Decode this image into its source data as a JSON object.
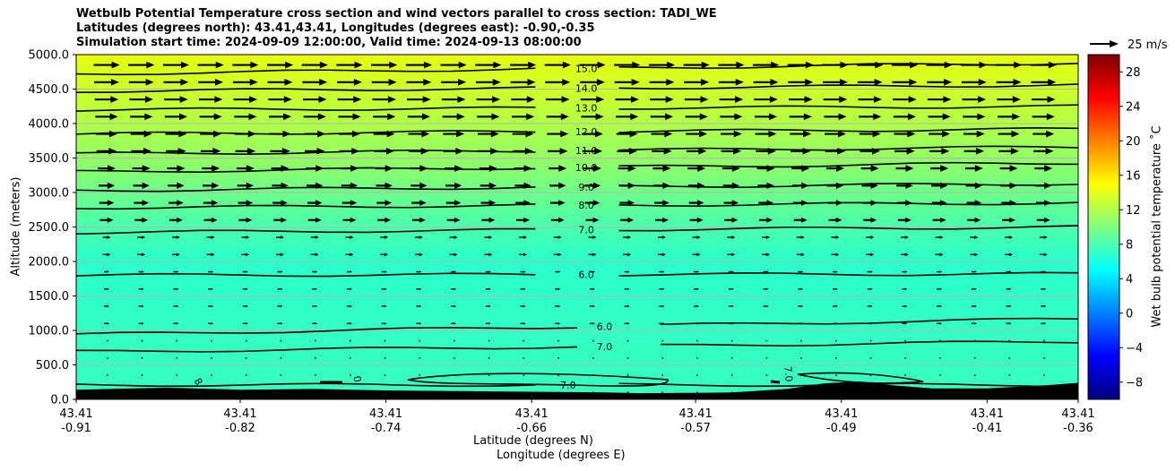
{
  "chart_data": {
    "type": "cross-section-contour",
    "title_lines": [
      "Wetbulb Potential Temperature cross section and wind vectors parallel to cross section: TADI_WE",
      "Latitudes (degrees north): 43.41,43.41, Longitudes (degrees east): -0.90,-0.35",
      "Simulation start time: 2024-09-09 12:00:00, Valid time: 2024-09-13 08:00:00"
    ],
    "ylabel": "Altitude (meters)",
    "xlabel_lat": "Latitude (degrees N)",
    "xlabel_lon": "Longitude (degrees E)",
    "ylim": [
      0,
      5000
    ],
    "yticks": [
      "0.0",
      "500.0",
      "1000.0",
      "1500.0",
      "2000.0",
      "2500.0",
      "3000.0",
      "3500.0",
      "4000.0",
      "4500.0",
      "5000.0"
    ],
    "xticks": [
      {
        "lat": "43.41",
        "lon": "-0.91"
      },
      {
        "lat": "43.41",
        "lon": "-0.82"
      },
      {
        "lat": "43.41",
        "lon": "-0.74"
      },
      {
        "lat": "43.41",
        "lon": "-0.66"
      },
      {
        "lat": "43.41",
        "lon": "-0.57"
      },
      {
        "lat": "43.41",
        "lon": "-0.49"
      },
      {
        "lat": "43.41",
        "lon": "-0.41"
      },
      {
        "lat": "43.41",
        "lon": "-0.36"
      }
    ],
    "lon_range": [
      -0.91,
      -0.36
    ],
    "colorbar": {
      "label": "Wet bulb potential temperature $^\\circ$C",
      "label_display": "Wet bulb potential temperature ˚C",
      "range": [
        -10,
        30
      ],
      "ticks": [
        "−8",
        "−4",
        "0",
        "4",
        "8",
        "12",
        "16",
        "20",
        "24",
        "28"
      ],
      "colormap": "jet"
    },
    "wind_key": "25 m/s",
    "contours": [
      {
        "label": "15.0",
        "value": 15,
        "left_alt": 4720,
        "right_alt": 4880,
        "label_lon": -0.63
      },
      {
        "label": "14.0",
        "value": 14,
        "left_alt": 4470,
        "right_alt": 4560,
        "label_lon": -0.63
      },
      {
        "label": "13.0",
        "value": 13,
        "left_alt": 4200,
        "right_alt": 4250,
        "label_lon": -0.63
      },
      {
        "label": "12.0",
        "value": 12,
        "left_alt": 3850,
        "right_alt": 3920,
        "label_lon": -0.63
      },
      {
        "label": "11.0",
        "value": 11,
        "left_alt": 3560,
        "right_alt": 3660,
        "label_lon": -0.63
      },
      {
        "label": "10.0",
        "value": 10,
        "left_alt": 3300,
        "right_alt": 3430,
        "label_lon": -0.63
      },
      {
        "label": "9.0",
        "value": 9,
        "left_alt": 3030,
        "right_alt": 3130,
        "label_lon": -0.63
      },
      {
        "label": "8.0",
        "value": 8,
        "left_alt": 2780,
        "right_alt": 2850,
        "label_lon": -0.63
      },
      {
        "label": "7.0",
        "value": 7,
        "left_alt": 2420,
        "right_alt": 2500,
        "label_lon": -0.63
      },
      {
        "label": "6.0",
        "value": 6,
        "left_alt": 1800,
        "right_alt": 1820,
        "label_lon": -0.63
      },
      {
        "label": "6.0",
        "value": 6,
        "left_alt": 940,
        "right_alt": 1170,
        "label_lon": -0.62
      },
      {
        "label": "7.0",
        "value": 7,
        "left_alt": 690,
        "right_alt": 840,
        "label_lon": -0.62
      },
      {
        "label": "7.0",
        "value": 7,
        "left_alt": 210,
        "right_alt": 210,
        "label_lon": -0.64
      }
    ],
    "contour_label_rotated": [
      "8",
      "0",
      "7.0"
    ],
    "terrain": "black orography along the bottom, roughly 100-300 m"
  }
}
